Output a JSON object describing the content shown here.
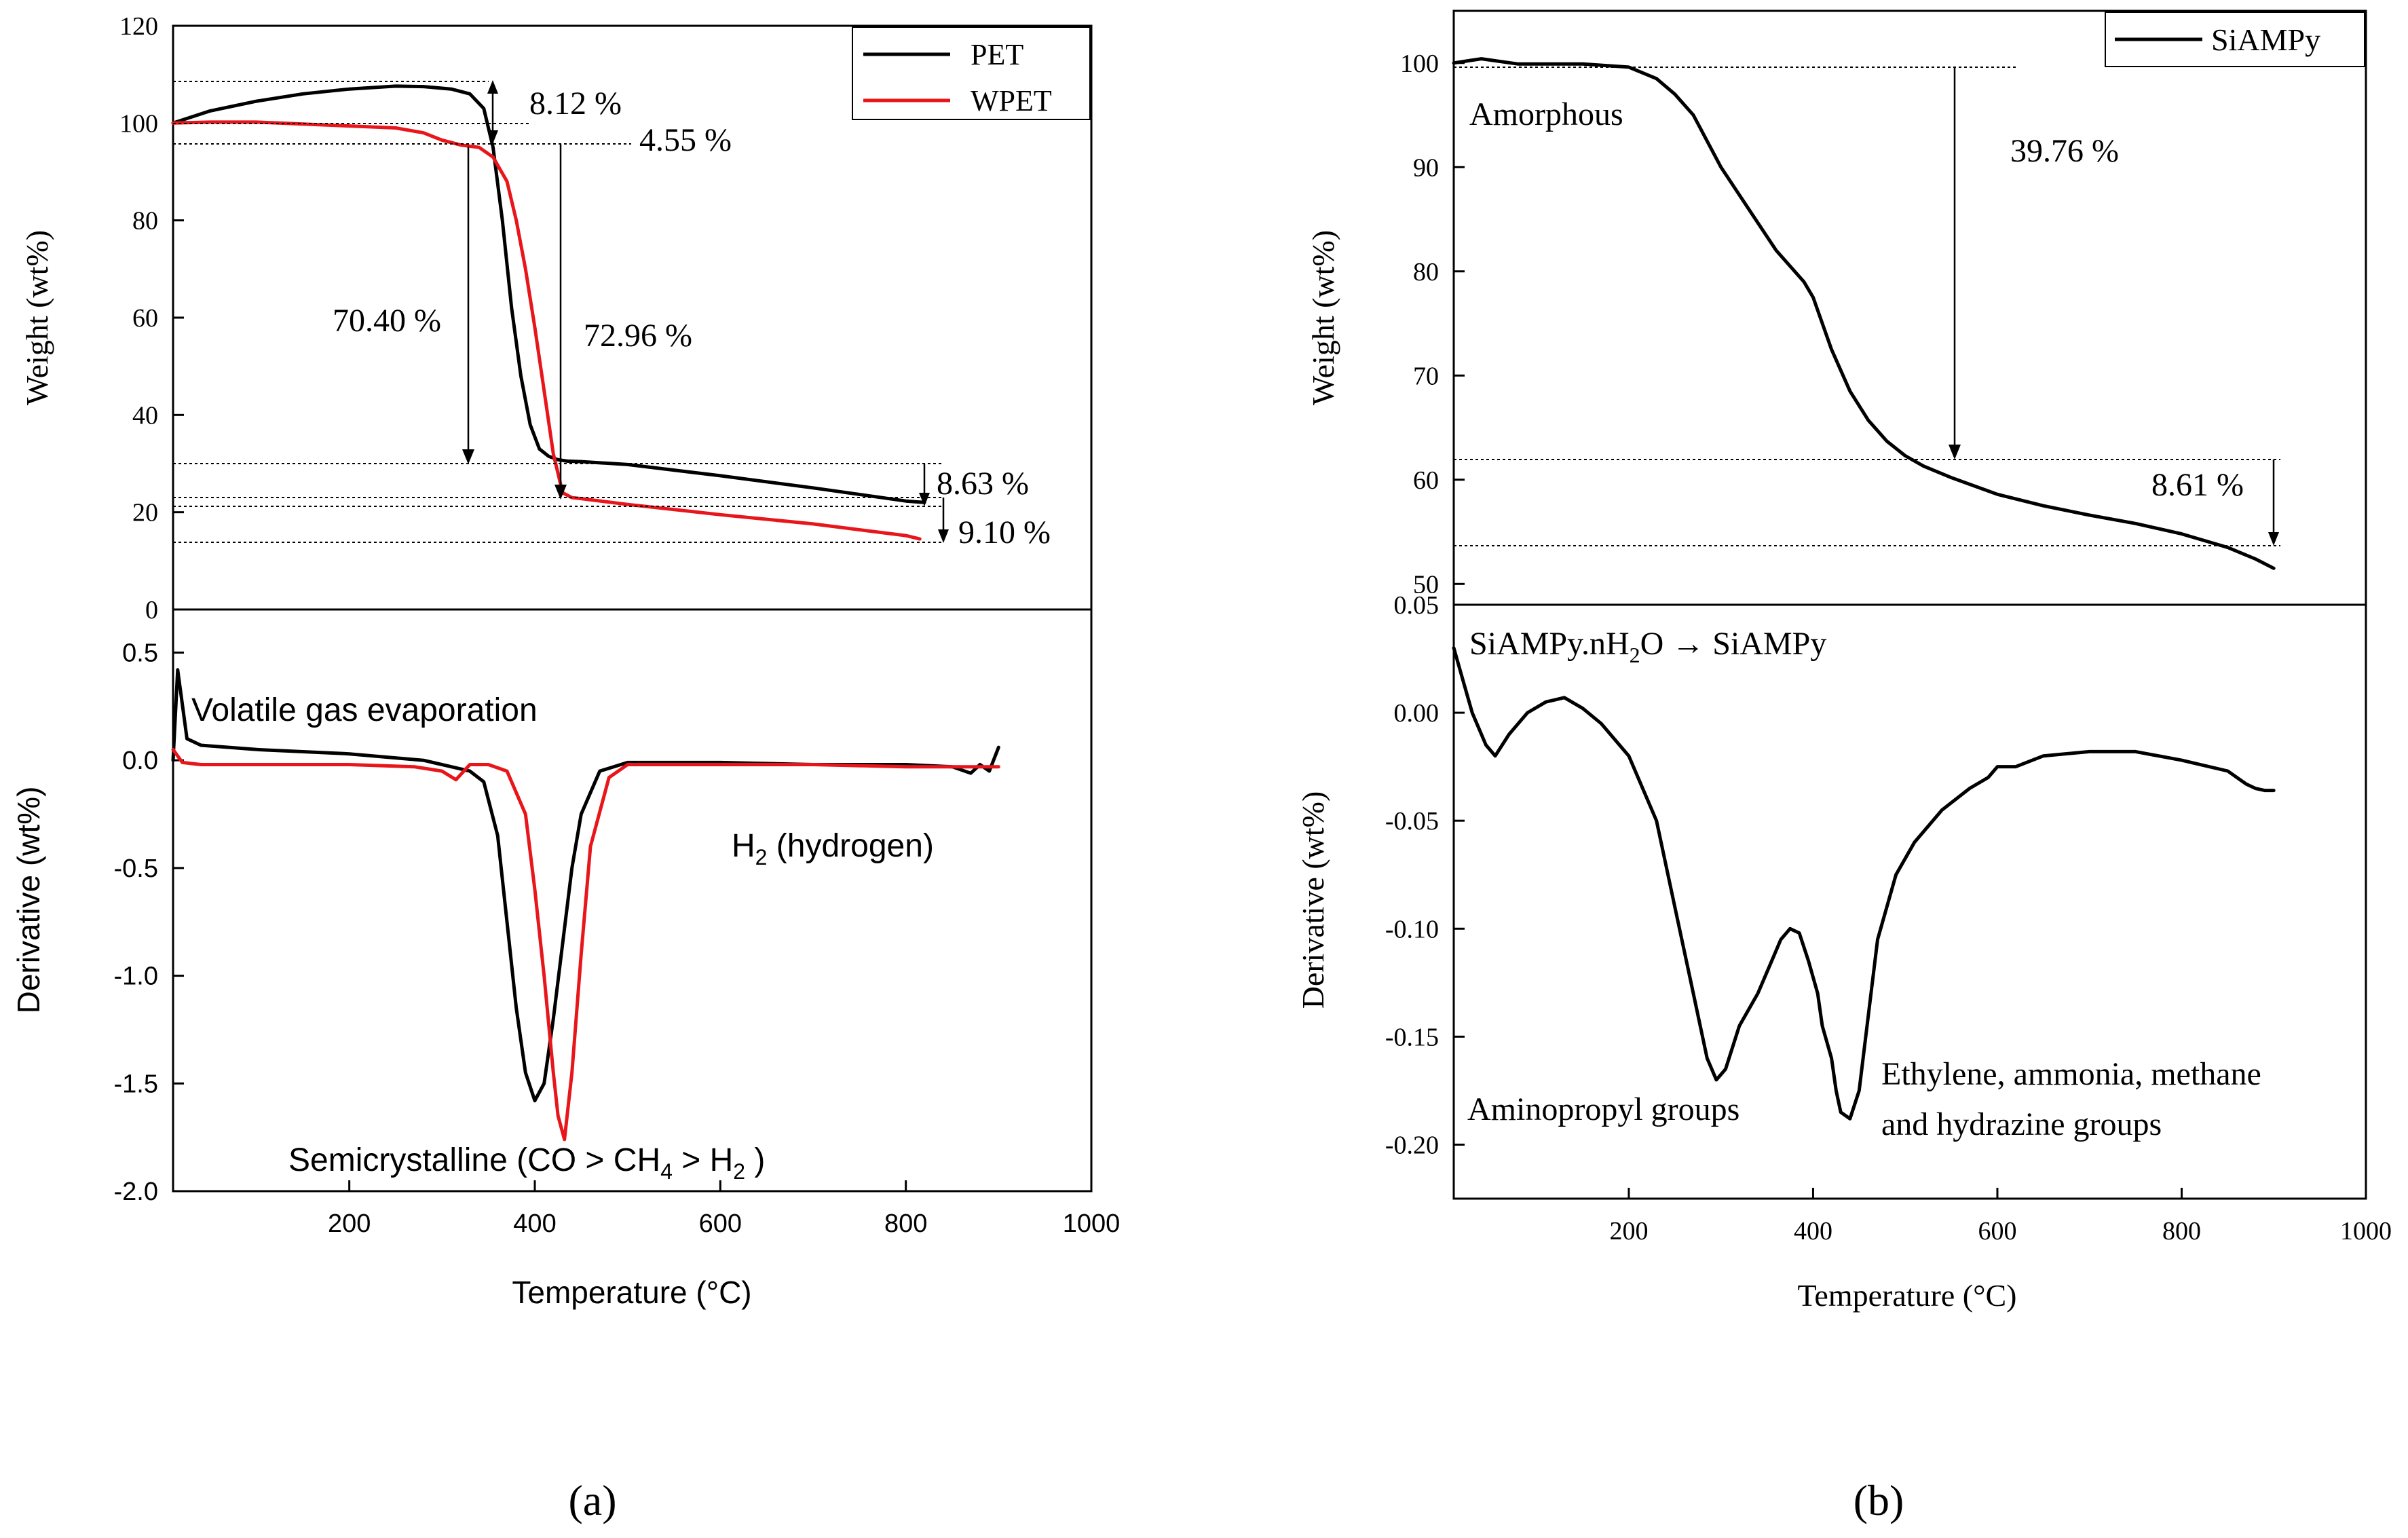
{
  "figure": {
    "panel_a_label": "(a)",
    "panel_b_label": "(b)"
  },
  "colors": {
    "PET": "#000000",
    "WPET": "#e8161b",
    "SiAMPy": "#000000"
  },
  "chart_data": [
    {
      "id": "a_tga",
      "type": "line",
      "ylabel": "Weight (wt%)",
      "xlim": [
        10,
        1000
      ],
      "ylim": [
        0,
        120
      ],
      "yticks": [
        "0",
        "20",
        "40",
        "60",
        "80",
        "100",
        "120"
      ],
      "legend": {
        "position": "top-right",
        "entries": [
          "PET",
          "WPET"
        ]
      },
      "series": [
        {
          "name": "PET",
          "x": [
            10,
            50,
            100,
            150,
            200,
            250,
            280,
            310,
            330,
            345,
            355,
            365,
            375,
            385,
            395,
            405,
            415,
            425,
            435,
            450,
            500,
            600,
            700,
            800,
            820
          ],
          "y": [
            100,
            102.5,
            104.5,
            106,
            107,
            107.6,
            107.5,
            107,
            106,
            103,
            95,
            80,
            62,
            48,
            38,
            33,
            31.5,
            30.8,
            30.5,
            30.4,
            29.8,
            27.5,
            25,
            22.3,
            22
          ]
        },
        {
          "name": "WPET",
          "x": [
            10,
            50,
            100,
            150,
            200,
            250,
            280,
            300,
            320,
            340,
            355,
            370,
            380,
            390,
            400,
            410,
            420,
            430,
            440,
            450,
            500,
            600,
            700,
            800,
            815
          ],
          "y": [
            100,
            100.2,
            100.2,
            99.8,
            99.4,
            99,
            98,
            96.5,
            95.5,
            95,
            93,
            88,
            80,
            70,
            58,
            45,
            32,
            24,
            23,
            22.8,
            21.6,
            19.5,
            17.6,
            15.2,
            14.5
          ]
        }
      ],
      "annotations": [
        "8.12 %",
        "4.55 %",
        "70.40 %",
        "72.96 %",
        "8.63 %",
        "9.10 %"
      ]
    },
    {
      "id": "a_dtg",
      "type": "line",
      "xlabel": "Temperature (°C)",
      "ylabel": "Derivative (wt%)",
      "xlim": [
        10,
        1000
      ],
      "ylim": [
        -2.0,
        0.7
      ],
      "xticks": [
        "200",
        "400",
        "600",
        "800",
        "1000"
      ],
      "yticks": [
        "-2.0",
        "-1.5",
        "-1.0",
        "-0.5",
        "0.0",
        "0.5"
      ],
      "series": [
        {
          "name": "PET",
          "x": [
            10,
            15,
            25,
            40,
            100,
            200,
            280,
            310,
            330,
            345,
            360,
            370,
            380,
            390,
            400,
            410,
            420,
            430,
            440,
            450,
            470,
            500,
            600,
            700,
            800,
            850,
            870,
            880,
            890,
            900
          ],
          "y": [
            0.0,
            0.42,
            0.1,
            0.07,
            0.05,
            0.03,
            0.0,
            -0.03,
            -0.05,
            -0.1,
            -0.35,
            -0.75,
            -1.15,
            -1.45,
            -1.58,
            -1.5,
            -1.2,
            -0.85,
            -0.5,
            -0.25,
            -0.05,
            -0.01,
            -0.01,
            -0.02,
            -0.02,
            -0.03,
            -0.06,
            -0.02,
            -0.05,
            0.06
          ]
        },
        {
          "name": "WPET",
          "x": [
            10,
            20,
            40,
            100,
            200,
            270,
            300,
            315,
            330,
            350,
            370,
            390,
            400,
            410,
            420,
            425,
            432,
            440,
            450,
            460,
            480,
            500,
            600,
            700,
            800,
            900
          ],
          "y": [
            0.05,
            -0.01,
            -0.02,
            -0.02,
            -0.02,
            -0.03,
            -0.05,
            -0.09,
            -0.02,
            -0.02,
            -0.05,
            -0.25,
            -0.6,
            -1.0,
            -1.45,
            -1.65,
            -1.76,
            -1.45,
            -0.9,
            -0.4,
            -0.08,
            -0.02,
            -0.02,
            -0.02,
            -0.03,
            -0.03
          ]
        }
      ],
      "annotations": {
        "volatile": "Volatile gas evaporation",
        "h2_main": "H",
        "h2_sub": "2",
        "h2_rest": " (hydrogen)",
        "semi_1": "Semicrystalline (CO > CH",
        "semi_sub4": "4",
        "semi_2": " > H",
        "semi_sub2": "2",
        "semi_3": " )"
      }
    },
    {
      "id": "b_tga",
      "type": "line",
      "ylabel": "Weight (wt%)",
      "xlim": [
        10,
        1000
      ],
      "ylim": [
        48,
        105
      ],
      "yticks": [
        "50",
        "60",
        "70",
        "80",
        "90",
        "100"
      ],
      "legend": {
        "position": "top-right",
        "entries": [
          "SiAMPy"
        ]
      },
      "series": [
        {
          "name": "SiAMPy",
          "x": [
            10,
            40,
            80,
            150,
            200,
            230,
            250,
            270,
            300,
            330,
            360,
            390,
            400,
            420,
            440,
            460,
            480,
            500,
            520,
            550,
            600,
            650,
            700,
            750,
            800,
            850,
            880,
            900
          ],
          "y": [
            100,
            100.4,
            99.9,
            99.9,
            99.6,
            98.5,
            97,
            95,
            90,
            86,
            82,
            79,
            77.5,
            72.5,
            68.5,
            65.7,
            63.7,
            62.3,
            61.3,
            60.2,
            58.6,
            57.5,
            56.6,
            55.8,
            54.8,
            53.5,
            52.4,
            51.5
          ]
        }
      ],
      "annotations": {
        "amorphous": "Amorphous",
        "loss1": "39.76 %",
        "loss2": "8.61 %"
      }
    },
    {
      "id": "b_dtg",
      "type": "line",
      "xlabel": "Temperature (°C)",
      "ylabel": "Derivative (wt%)",
      "xlim": [
        10,
        1000
      ],
      "ylim": [
        -0.225,
        0.05
      ],
      "xticks": [
        "200",
        "400",
        "600",
        "800",
        "1000"
      ],
      "yticks": [
        "-0.20",
        "-0.15",
        "-0.10",
        "-0.05",
        "0.00",
        "0.05"
      ],
      "series": [
        {
          "name": "SiAMPy",
          "x": [
            10,
            20,
            30,
            45,
            55,
            70,
            90,
            110,
            130,
            150,
            170,
            200,
            230,
            250,
            270,
            285,
            295,
            305,
            320,
            340,
            355,
            365,
            375,
            385,
            395,
            405,
            410,
            420,
            425,
            430,
            440,
            450,
            460,
            470,
            490,
            510,
            540,
            570,
            590,
            600,
            620,
            650,
            700,
            750,
            800,
            850,
            870,
            880,
            890,
            900
          ],
          "y": [
            0.03,
            0.015,
            0.0,
            -0.015,
            -0.02,
            -0.01,
            0.0,
            0.005,
            0.007,
            0.002,
            -0.005,
            -0.02,
            -0.05,
            -0.09,
            -0.13,
            -0.16,
            -0.17,
            -0.165,
            -0.145,
            -0.13,
            -0.115,
            -0.105,
            -0.1,
            -0.102,
            -0.115,
            -0.13,
            -0.145,
            -0.16,
            -0.175,
            -0.185,
            -0.188,
            -0.175,
            -0.14,
            -0.105,
            -0.075,
            -0.06,
            -0.045,
            -0.035,
            -0.03,
            -0.025,
            -0.025,
            -0.02,
            -0.018,
            -0.018,
            -0.022,
            -0.027,
            -0.033,
            -0.035,
            -0.036,
            -0.036
          ]
        }
      ],
      "annotations": {
        "reaction_pre": "SiAMPy.nH",
        "reaction_sub": "2",
        "reaction_post": "O → SiAMPy",
        "aminopropyl": "Aminopropyl groups",
        "ethylene_1": "Ethylene, ammonia, methane",
        "ethylene_2": "and hydrazine groups"
      }
    }
  ]
}
